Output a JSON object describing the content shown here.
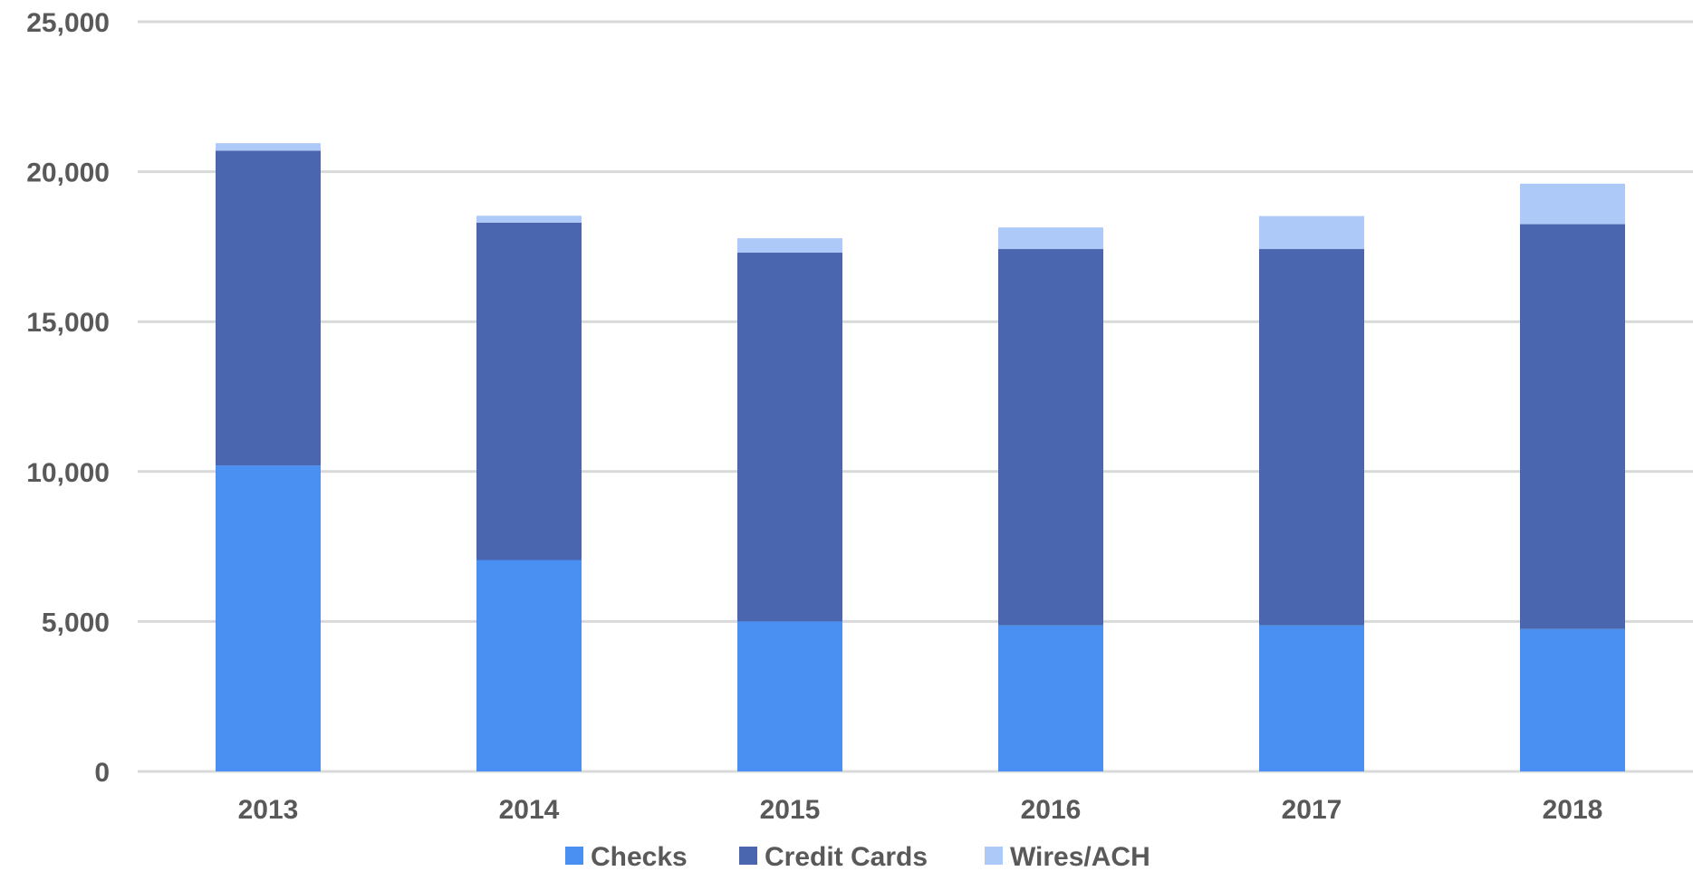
{
  "chart_data": {
    "type": "bar",
    "stacked": true,
    "title": "",
    "xlabel": "",
    "ylabel": "",
    "categories": [
      "2013",
      "2014",
      "2015",
      "2016",
      "2017",
      "2018"
    ],
    "series": [
      {
        "name": "Checks",
        "color": "#4a8ff2",
        "values": [
          10200,
          7050,
          5000,
          4870,
          4870,
          4750
        ]
      },
      {
        "name": "Credit Cards",
        "color": "#4966ae",
        "values": [
          10500,
          11250,
          12300,
          12550,
          12550,
          13500
        ]
      },
      {
        "name": "Wires/ACH",
        "color": "#adc9f7",
        "values": [
          250,
          230,
          480,
          720,
          1100,
          1350
        ]
      }
    ],
    "ylim": [
      0,
      25000
    ],
    "yticks": [
      0,
      5000,
      10000,
      15000,
      20000,
      25000
    ],
    "ytick_labels": [
      "0",
      "5,000",
      "10,000",
      "15,000",
      "20,000",
      "25,000"
    ],
    "grid": true,
    "legend_position": "bottom"
  }
}
